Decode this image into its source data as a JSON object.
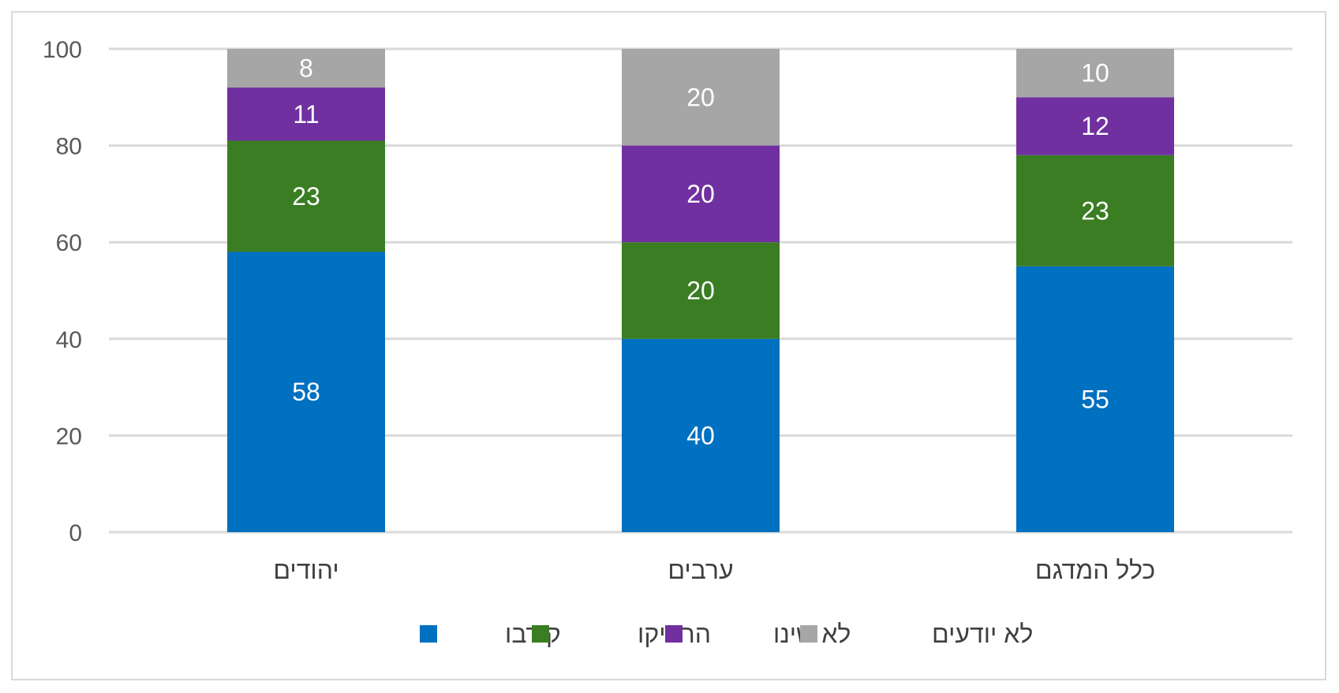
{
  "chart_data": {
    "type": "bar",
    "stacked": true,
    "categories": [
      "יהודים",
      "ערבים",
      "כלל המדגם"
    ],
    "series": [
      {
        "name": "קירבו",
        "color": "#0070C0",
        "values": [
          58,
          40,
          55
        ]
      },
      {
        "name": "הרחיקו",
        "color": "#3A7D22",
        "values": [
          23,
          20,
          23
        ]
      },
      {
        "name": "לא שינו",
        "color": "#7030A0",
        "values": [
          11,
          20,
          12
        ]
      },
      {
        "name": "לא יודעים",
        "color": "#A6A6A6",
        "values": [
          8,
          20,
          10
        ]
      }
    ],
    "yticks": [
      "0",
      "20",
      "40",
      "60",
      "80",
      "100"
    ],
    "ylim": [
      0,
      100
    ],
    "grid": true,
    "legend": "bottom",
    "title": "",
    "xlabel": "",
    "ylabel": ""
  }
}
